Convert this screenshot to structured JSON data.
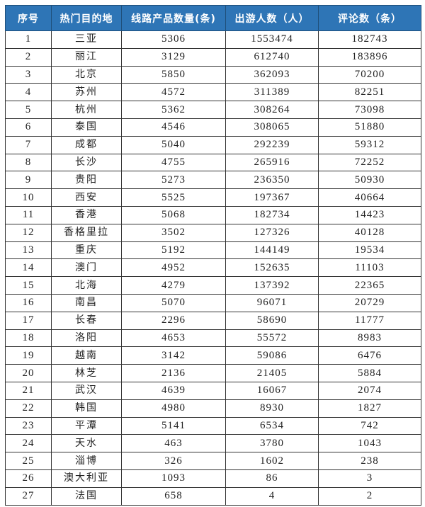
{
  "headers": [
    "序号",
    "热门目的地",
    "线路产品数量(条)",
    "出游人数（人）",
    "评论数（条）"
  ],
  "rows": [
    [
      "1",
      "三亚",
      "5306",
      "1553474",
      "182743"
    ],
    [
      "2",
      "丽江",
      "3129",
      "612740",
      "183896"
    ],
    [
      "3",
      "北京",
      "5850",
      "362093",
      "70200"
    ],
    [
      "4",
      "苏州",
      "4572",
      "311389",
      "82251"
    ],
    [
      "5",
      "杭州",
      "5362",
      "308264",
      "73098"
    ],
    [
      "6",
      "泰国",
      "4546",
      "308065",
      "51880"
    ],
    [
      "7",
      "成都",
      "5040",
      "292239",
      "59312"
    ],
    [
      "8",
      "长沙",
      "4755",
      "265916",
      "72252"
    ],
    [
      "9",
      "贵阳",
      "5273",
      "236350",
      "50930"
    ],
    [
      "10",
      "西安",
      "5525",
      "197367",
      "40664"
    ],
    [
      "11",
      "香港",
      "5068",
      "182734",
      "14423"
    ],
    [
      "12",
      "香格里拉",
      "3502",
      "127326",
      "40128"
    ],
    [
      "13",
      "重庆",
      "5192",
      "144149",
      "19534"
    ],
    [
      "14",
      "澳门",
      "4952",
      "152635",
      "11103"
    ],
    [
      "15",
      "北海",
      "4279",
      "137392",
      "22365"
    ],
    [
      "16",
      "南昌",
      "5070",
      "96071",
      "20729"
    ],
    [
      "17",
      "长春",
      "2296",
      "58690",
      "11777"
    ],
    [
      "18",
      "洛阳",
      "4653",
      "55572",
      "8983"
    ],
    [
      "19",
      "越南",
      "3142",
      "59086",
      "6476"
    ],
    [
      "20",
      "林芝",
      "2136",
      "21405",
      "5884"
    ],
    [
      "21",
      "武汉",
      "4639",
      "16067",
      "2074"
    ],
    [
      "22",
      "韩国",
      "4980",
      "8930",
      "1827"
    ],
    [
      "23",
      "平潭",
      "5141",
      "6534",
      "742"
    ],
    [
      "24",
      "天水",
      "463",
      "3780",
      "1043"
    ],
    [
      "25",
      "淄博",
      "326",
      "1602",
      "238"
    ],
    [
      "26",
      "澳大利亚",
      "1093",
      "86",
      "3"
    ],
    [
      "27",
      "法国",
      "658",
      "4",
      "2"
    ]
  ],
  "colors": {
    "header_bg": "#2e75b6",
    "header_text": "#ffffff"
  }
}
